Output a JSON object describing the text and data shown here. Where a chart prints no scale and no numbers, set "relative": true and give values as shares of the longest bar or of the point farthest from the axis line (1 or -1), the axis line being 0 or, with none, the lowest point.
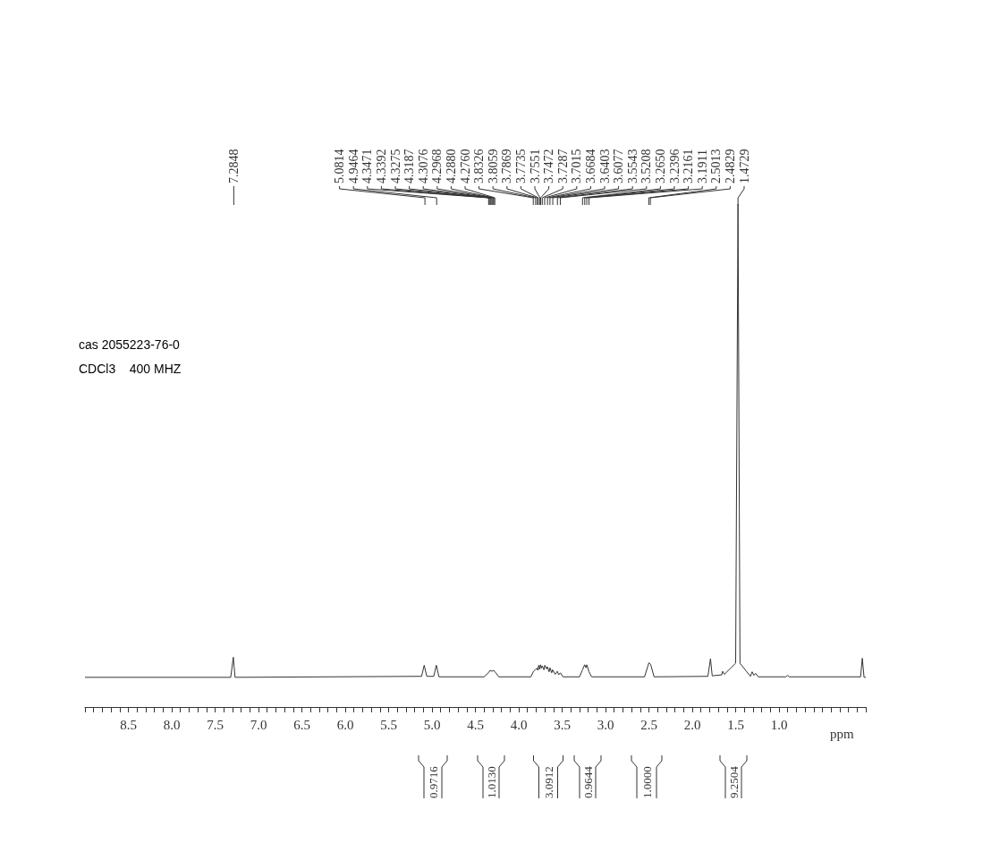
{
  "chart_data": {
    "type": "line",
    "relative": true,
    "xlabel": "ppm",
    "xlim": [
      9.0,
      0.0
    ],
    "xticks": [
      {
        "value": 9.0,
        "label": null
      },
      {
        "value": 8.9,
        "label": null
      },
      {
        "value": 8.8,
        "label": null
      },
      {
        "value": 8.7,
        "label": null
      },
      {
        "value": 8.6,
        "label": null
      },
      8.5,
      {
        "value": 8.4,
        "label": null
      },
      {
        "value": 8.3,
        "label": null
      },
      {
        "value": 8.2,
        "label": null
      },
      {
        "value": 8.1,
        "label": null
      },
      {
        "value": 8,
        "label": "8.0"
      },
      {
        "value": 7.9,
        "label": null
      },
      {
        "value": 7.8,
        "label": null
      },
      {
        "value": 7.7,
        "label": null
      },
      {
        "value": 7.6,
        "label": null
      },
      7.5,
      {
        "value": 7.4,
        "label": null
      },
      {
        "value": 7.3,
        "label": null
      },
      {
        "value": 7.2,
        "label": null
      },
      {
        "value": 7.1,
        "label": null
      },
      {
        "value": 7,
        "label": "7.0"
      },
      {
        "value": 6.9,
        "label": null
      },
      {
        "value": 6.8,
        "label": null
      },
      {
        "value": 6.7,
        "label": null
      },
      {
        "value": 6.6,
        "label": null
      },
      6.5,
      {
        "value": 6.4,
        "label": null
      },
      {
        "value": 6.3,
        "label": null
      },
      {
        "value": 6.2,
        "label": null
      },
      {
        "value": 6.1,
        "label": null
      },
      {
        "value": 6,
        "label": "6.0"
      },
      {
        "value": 5.9,
        "label": null
      },
      {
        "value": 5.8,
        "label": null
      },
      {
        "value": 5.7,
        "label": null
      },
      {
        "value": 5.6,
        "label": null
      },
      5.5,
      {
        "value": 5.4,
        "label": null
      },
      {
        "value": 5.3,
        "label": null
      },
      {
        "value": 5.2,
        "label": null
      },
      {
        "value": 5.1,
        "label": null
      },
      {
        "value": 5,
        "label": "5.0"
      },
      {
        "value": 4.9,
        "label": null
      },
      {
        "value": 4.8,
        "label": null
      },
      {
        "value": 4.7,
        "label": null
      },
      {
        "value": 4.6,
        "label": null
      },
      4.5,
      {
        "value": 4.4,
        "label": null
      },
      {
        "value": 4.3,
        "label": null
      },
      {
        "value": 4.2,
        "label": null
      },
      {
        "value": 4.1,
        "label": null
      },
      {
        "value": 4,
        "label": "4.0"
      },
      {
        "value": 3.9,
        "label": null
      },
      {
        "value": 3.8,
        "label": null
      },
      {
        "value": 3.7,
        "label": null
      },
      {
        "value": 3.6,
        "label": null
      },
      3.5,
      {
        "value": 3.4,
        "label": null
      },
      {
        "value": 3.3,
        "label": null
      },
      {
        "value": 3.2,
        "label": null
      },
      {
        "value": 3.1,
        "label": null
      },
      {
        "value": 3,
        "label": "3.0"
      },
      {
        "value": 2.9,
        "label": null
      },
      {
        "value": 2.8,
        "label": null
      },
      {
        "value": 2.7,
        "label": null
      },
      {
        "value": 2.6,
        "label": null
      },
      2.5,
      {
        "value": 2.4,
        "label": null
      },
      {
        "value": 2.3,
        "label": null
      },
      {
        "value": 2.2,
        "label": null
      },
      {
        "value": 2.1,
        "label": null
      },
      {
        "value": 2,
        "label": "2.0"
      },
      {
        "value": 1.9,
        "label": null
      },
      {
        "value": 1.8,
        "label": null
      },
      {
        "value": 1.7,
        "label": null
      },
      {
        "value": 1.6,
        "label": null
      },
      1.5,
      {
        "value": 1.4,
        "label": null
      },
      {
        "value": 1.3,
        "label": null
      },
      {
        "value": 1.2,
        "label": null
      },
      {
        "value": 1.1,
        "label": null
      },
      {
        "value": 1,
        "label": "1.0"
      },
      {
        "value": 0.9,
        "label": null
      },
      {
        "value": 0.8,
        "label": null
      },
      {
        "value": 0.7,
        "label": null
      },
      {
        "value": 0.6,
        "label": null
      },
      {
        "value": 0.5,
        "label": null
      },
      {
        "value": 0.4,
        "label": null
      },
      {
        "value": 0.3,
        "label": null
      },
      {
        "value": 0.2,
        "label": null
      },
      {
        "value": 0.1,
        "label": null
      },
      {
        "value": 0.0,
        "label": null
      }
    ],
    "grid": false,
    "marker": "none",
    "line_style": "solid",
    "series": [
      {
        "color": "#333333",
        "x": [
          9.0,
          7.32,
          7.29,
          7.27,
          5.12,
          5.09,
          5.06,
          4.98,
          4.95,
          4.92,
          4.4,
          4.35,
          4.33,
          4.31,
          4.29,
          4.27,
          4.23,
          3.86,
          3.83,
          3.81,
          3.79,
          3.78,
          3.77,
          3.76,
          3.75,
          3.74,
          3.73,
          3.71,
          3.7,
          3.68,
          3.67,
          3.65,
          3.64,
          3.62,
          3.61,
          3.58,
          3.555,
          3.54,
          3.52,
          3.49,
          3.3,
          3.265,
          3.24,
          3.225,
          3.215,
          3.19,
          3.16,
          2.55,
          2.5,
          2.48,
          2.44,
          1.82,
          1.79,
          1.77,
          1.66,
          1.65,
          1.63,
          1.5,
          1.4729,
          1.45,
          1.33,
          1.31,
          1.29,
          1.27,
          1.24,
          0.92,
          0.9,
          0.88,
          0.06,
          0.04,
          0.02,
          0.0
        ],
        "values": [
          0.059,
          0.059,
          0.099,
          0.059,
          0.061,
          0.083,
          0.061,
          0.061,
          0.083,
          0.06,
          0.06,
          0.068,
          0.073,
          0.071,
          0.073,
          0.069,
          0.06,
          0.06,
          0.071,
          0.074,
          0.077,
          0.073,
          0.083,
          0.075,
          0.084,
          0.077,
          0.082,
          0.074,
          0.083,
          0.076,
          0.08,
          0.07,
          0.078,
          0.068,
          0.074,
          0.065,
          0.071,
          0.064,
          0.068,
          0.06,
          0.06,
          0.074,
          0.084,
          0.078,
          0.084,
          0.07,
          0.06,
          0.06,
          0.088,
          0.085,
          0.06,
          0.061,
          0.096,
          0.062,
          0.064,
          0.071,
          0.065,
          0.087,
          1.0,
          0.087,
          0.061,
          0.07,
          0.063,
          0.067,
          0.06,
          0.06,
          0.063,
          0.06,
          0.06,
          0.097,
          0.059,
          0.059
        ]
      }
    ],
    "annotations": [
      {
        "text": "7.2848",
        "x": 7.2848
      },
      {
        "text": "5.0814",
        "x": 5.0814
      },
      {
        "text": "4.9464",
        "x": 4.9464
      },
      {
        "text": "4.3471",
        "x": 4.3471
      },
      {
        "text": "4.3392",
        "x": 4.3392
      },
      {
        "text": "4.3275",
        "x": 4.3275
      },
      {
        "text": "4.3187",
        "x": 4.3187
      },
      {
        "text": "4.3076",
        "x": 4.3076
      },
      {
        "text": "4.2968",
        "x": 4.2968
      },
      {
        "text": "4.2880",
        "x": 4.288
      },
      {
        "text": "4.2760",
        "x": 4.276
      },
      {
        "text": "3.8326",
        "x": 3.8326
      },
      {
        "text": "3.8059",
        "x": 3.8059
      },
      {
        "text": "3.7869",
        "x": 3.7869
      },
      {
        "text": "3.7735",
        "x": 3.7735
      },
      {
        "text": "3.7551",
        "x": 3.7551
      },
      {
        "text": "3.7472",
        "x": 3.7472
      },
      {
        "text": "3.7287",
        "x": 3.7287
      },
      {
        "text": "3.7015",
        "x": 3.7015
      },
      {
        "text": "3.6684",
        "x": 3.6684
      },
      {
        "text": "3.6403",
        "x": 3.6403
      },
      {
        "text": "3.6077",
        "x": 3.6077
      },
      {
        "text": "3.5543",
        "x": 3.5543
      },
      {
        "text": "3.5208",
        "x": 3.5208
      },
      {
        "text": "3.2650",
        "x": 3.265
      },
      {
        "text": "3.2396",
        "x": 3.2396
      },
      {
        "text": "3.2161",
        "x": 3.2161
      },
      {
        "text": "3.1911",
        "x": 3.1911
      },
      {
        "text": "2.5013",
        "x": 2.5013
      },
      {
        "text": "2.4829",
        "x": 2.4829
      },
      {
        "text": "1.4729",
        "x": 1.4729
      },
      "0.9716",
      "1.0130",
      "3.0912",
      "0.9644",
      "1.0000",
      "9.2504",
      "cas 2055223-76-0",
      "CDCl3    400 MHZ"
    ]
  }
}
